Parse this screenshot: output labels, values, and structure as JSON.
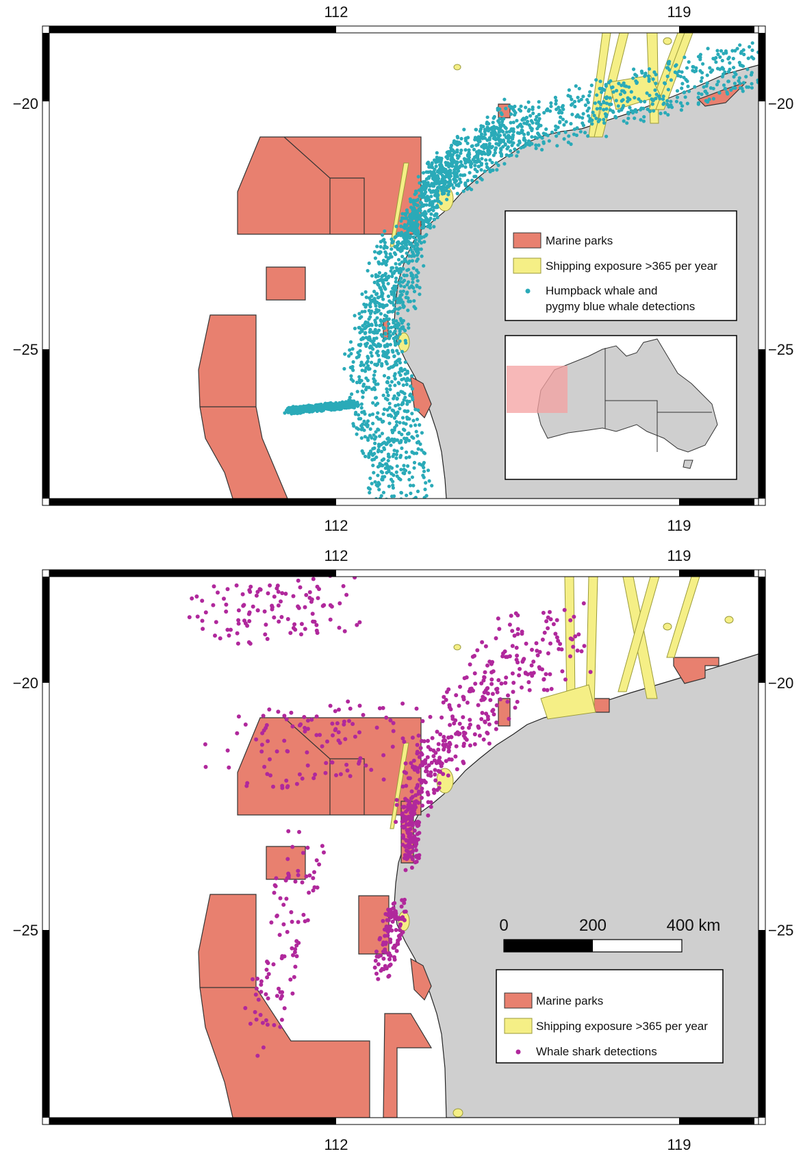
{
  "colors": {
    "marine_park": "#e8806f",
    "park_stroke": "#333333",
    "shipping": "#f5ef86",
    "shipping_stroke": "#9a9a3a",
    "land": "#cfcfcf",
    "coast_stroke": "#222222",
    "whale": "#2aaab8",
    "whale_shark": "#b0289c",
    "inset_box": "#f4a0a0",
    "frame": "#000000"
  },
  "map_top": {
    "x_ticks": [
      "112",
      "119"
    ],
    "y_ticks": [
      "−20",
      "−25"
    ],
    "legend": {
      "items": [
        {
          "label": "Marine parks",
          "symbol": "swatch-park"
        },
        {
          "label": "Shipping exposure >365 per year",
          "symbol": "swatch-shipping"
        },
        {
          "label": "Humpback whale and",
          "label2": "pygmy blue whale detections",
          "symbol": "dot-whale"
        }
      ]
    },
    "inset": {
      "description_icon": "australia-inset-map"
    }
  },
  "map_bottom": {
    "x_ticks": [
      "112",
      "119"
    ],
    "y_ticks": [
      "−20",
      "−25"
    ],
    "scale_bar": {
      "labels": [
        "0",
        "200",
        "400 km"
      ]
    },
    "legend": {
      "items": [
        {
          "label": "Marine parks",
          "symbol": "swatch-park"
        },
        {
          "label": "Shipping exposure >365 per year",
          "symbol": "swatch-shipping"
        },
        {
          "label": "Whale shark detections",
          "symbol": "dot-shark"
        }
      ]
    }
  }
}
